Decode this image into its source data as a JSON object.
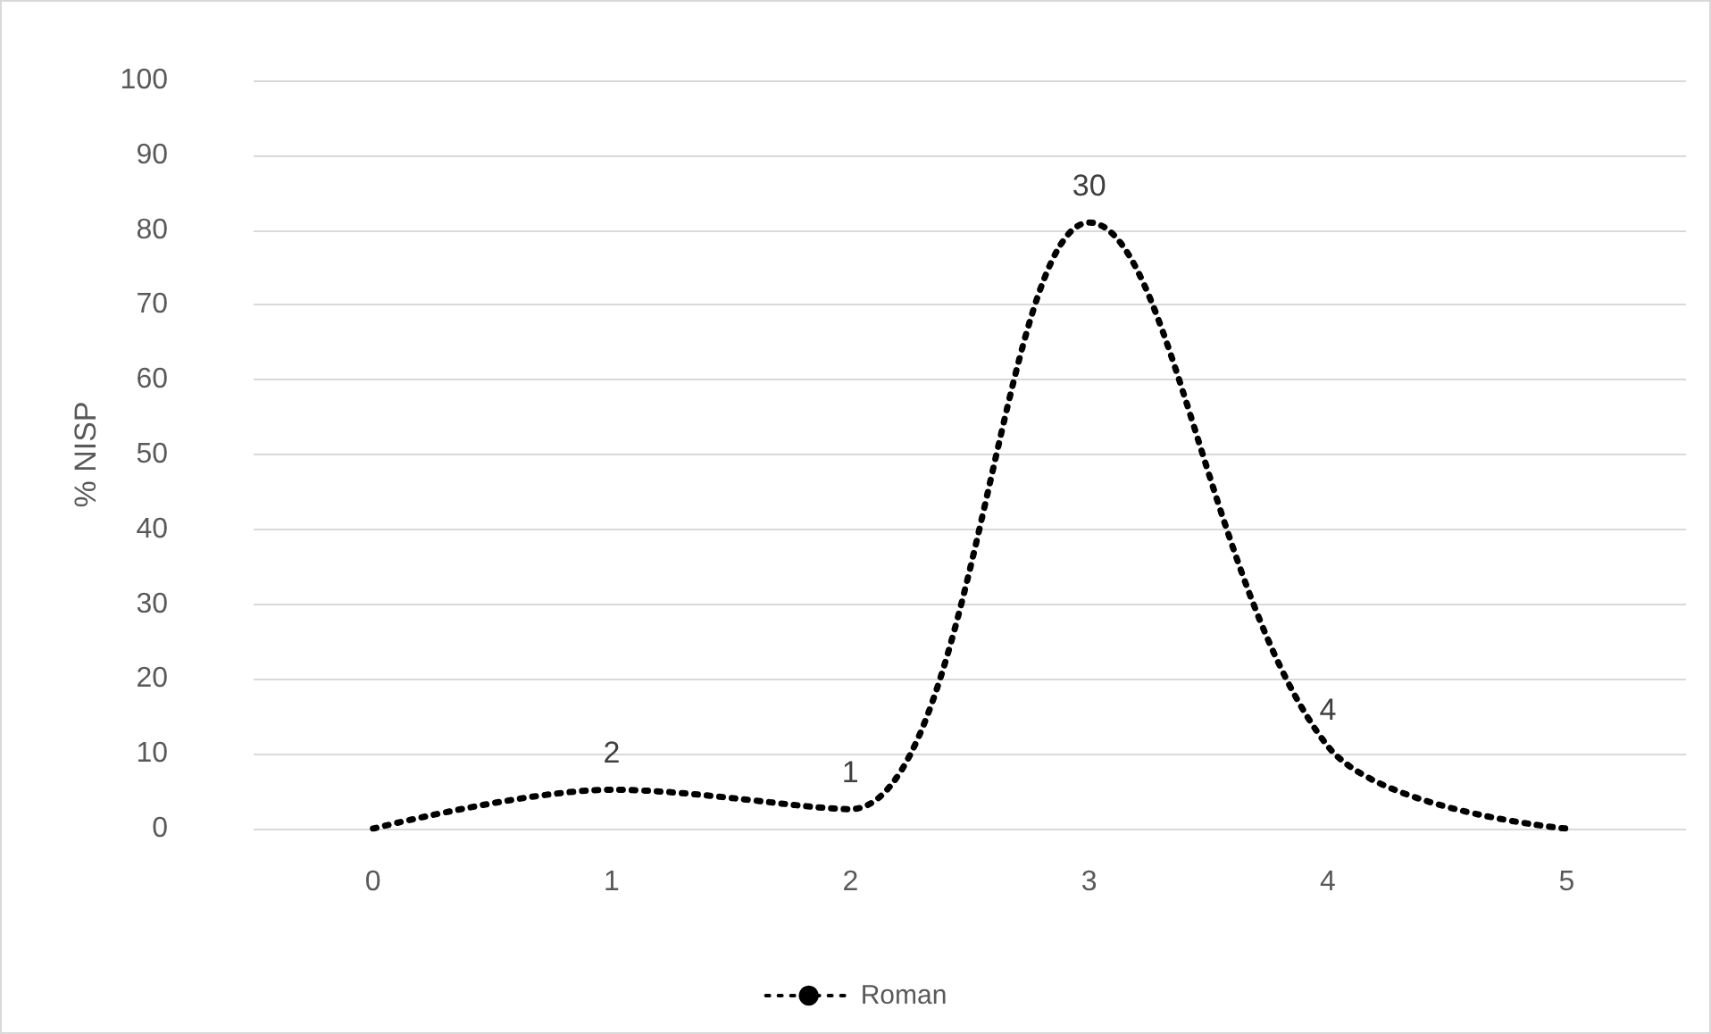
{
  "chart_data": {
    "type": "line",
    "ylabel": "% NISP",
    "categories": [
      "0",
      "1",
      "2",
      "3",
      "4",
      "5"
    ],
    "series": [
      {
        "name": "Roman",
        "color": "#000000",
        "values": [
          0,
          5.2,
          2.6,
          81,
          11,
          0
        ]
      }
    ],
    "annotations": [
      {
        "text": "2",
        "x": "1",
        "y": 5.2
      },
      {
        "text": "1",
        "x": "2",
        "y": 2.6
      },
      {
        "text": "30",
        "x": "3",
        "y": 81
      },
      {
        "text": "4",
        "x": "4",
        "y": 11
      }
    ],
    "ylim": [
      0,
      100
    ],
    "yticks": [
      0,
      10,
      20,
      30,
      40,
      50,
      60,
      70,
      80,
      90,
      100
    ],
    "grid": "y",
    "legend": "bottom",
    "marker": "none",
    "line_style": "dotted"
  }
}
